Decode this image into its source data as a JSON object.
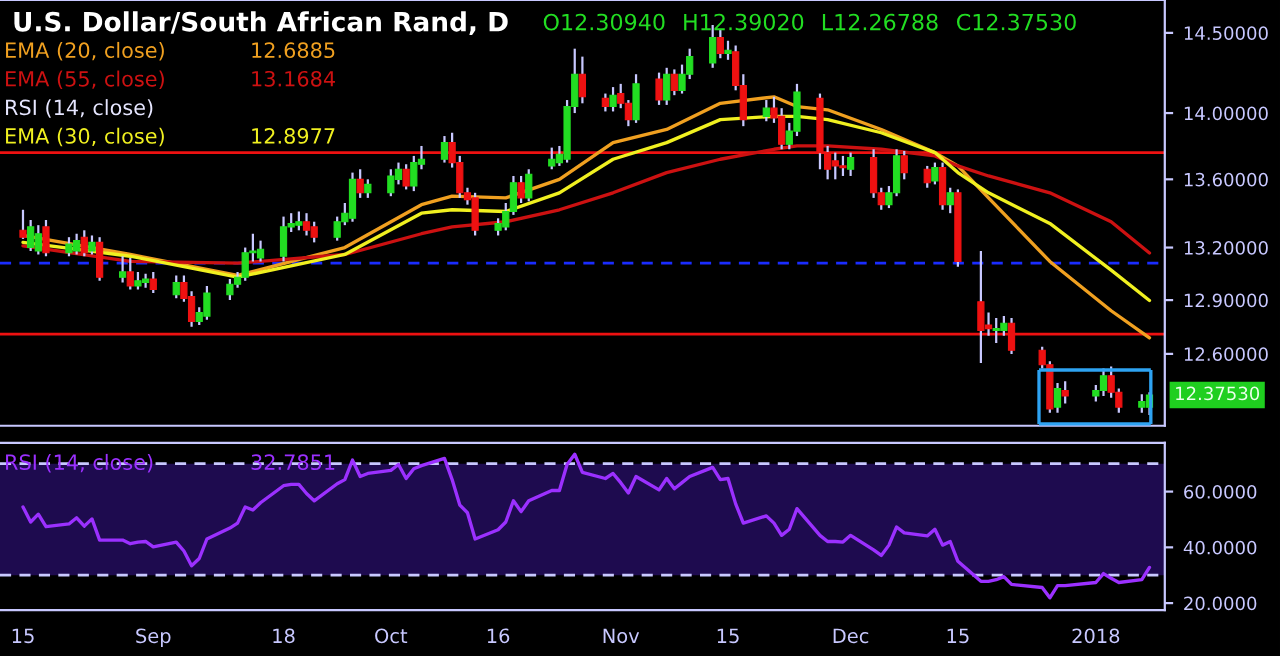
{
  "chart_data": [
    {
      "type": "candlestick",
      "title": "U.S. Dollar/South African Rand, D",
      "x": [
        "2017-08-15",
        "2017-08-16",
        "2017-08-17",
        "2017-08-18",
        "2017-08-21",
        "2017-08-22",
        "2017-08-23",
        "2017-08-24",
        "2017-08-25",
        "2017-08-28",
        "2017-08-29",
        "2017-08-30",
        "2017-08-31",
        "2017-09-01",
        "2017-09-04",
        "2017-09-05",
        "2017-09-06",
        "2017-09-07",
        "2017-09-08",
        "2017-09-11",
        "2017-09-12",
        "2017-09-13",
        "2017-09-14",
        "2017-09-15",
        "2017-09-18",
        "2017-09-19",
        "2017-09-20",
        "2017-09-21",
        "2017-09-22",
        "2017-09-25",
        "2017-09-26",
        "2017-09-27",
        "2017-09-28",
        "2017-09-29",
        "2017-10-02",
        "2017-10-03",
        "2017-10-04",
        "2017-10-05",
        "2017-10-06",
        "2017-10-09",
        "2017-10-10",
        "2017-10-11",
        "2017-10-12",
        "2017-10-13",
        "2017-10-16",
        "2017-10-17",
        "2017-10-18",
        "2017-10-19",
        "2017-10-20",
        "2017-10-23",
        "2017-10-24",
        "2017-10-25",
        "2017-10-26",
        "2017-10-27",
        "2017-10-30",
        "2017-10-31",
        "2017-11-01",
        "2017-11-02",
        "2017-11-03",
        "2017-11-06",
        "2017-11-07",
        "2017-11-08",
        "2017-11-09",
        "2017-11-10",
        "2017-11-13",
        "2017-11-14",
        "2017-11-15",
        "2017-11-16",
        "2017-11-17",
        "2017-11-20",
        "2017-11-21",
        "2017-11-22",
        "2017-11-23",
        "2017-11-24",
        "2017-11-27",
        "2017-11-28",
        "2017-11-29",
        "2017-11-30",
        "2017-12-01",
        "2017-12-04",
        "2017-12-05",
        "2017-12-06",
        "2017-12-07",
        "2017-12-08",
        "2017-12-11",
        "2017-12-12",
        "2017-12-13",
        "2017-12-14",
        "2017-12-15",
        "2017-12-18",
        "2017-12-19",
        "2017-12-20",
        "2017-12-21",
        "2017-12-22",
        "2017-12-26",
        "2017-12-27",
        "2017-12-28",
        "2017-12-29",
        "2018-01-02",
        "2018-01-03",
        "2018-01-04",
        "2018-01-05",
        "2018-01-08",
        "2018-01-09"
      ],
      "ohlc": [
        [
          13.3,
          13.42,
          13.25,
          13.26
        ],
        [
          13.2,
          13.36,
          13.18,
          13.32
        ],
        [
          13.18,
          13.33,
          13.16,
          13.28
        ],
        [
          13.32,
          13.36,
          13.15,
          13.17
        ],
        [
          13.17,
          13.26,
          13.15,
          13.22
        ],
        [
          13.18,
          13.28,
          13.16,
          13.24
        ],
        [
          13.26,
          13.3,
          13.15,
          13.17
        ],
        [
          13.18,
          13.27,
          13.16,
          13.23
        ],
        [
          13.23,
          13.26,
          13.01,
          13.03
        ],
        [
          13.03,
          13.15,
          13.0,
          13.06
        ],
        [
          13.06,
          13.14,
          12.96,
          12.98
        ],
        [
          12.98,
          13.06,
          12.96,
          13.01
        ],
        [
          13.0,
          13.05,
          12.97,
          13.02
        ],
        [
          13.02,
          13.06,
          12.94,
          12.96
        ],
        [
          12.93,
          13.04,
          12.91,
          13.0
        ],
        [
          13.0,
          13.04,
          12.89,
          12.91
        ],
        [
          12.92,
          12.95,
          12.75,
          12.78
        ],
        [
          12.78,
          12.86,
          12.76,
          12.83
        ],
        [
          12.81,
          12.98,
          12.79,
          12.94
        ],
        [
          12.93,
          13.02,
          12.9,
          12.99
        ],
        [
          12.99,
          13.06,
          12.97,
          13.03
        ],
        [
          13.03,
          13.2,
          13.01,
          13.17
        ],
        [
          13.17,
          13.28,
          13.12,
          13.18
        ],
        [
          13.14,
          13.24,
          13.12,
          13.19
        ],
        [
          13.15,
          13.38,
          13.12,
          13.32
        ],
        [
          13.32,
          13.4,
          13.29,
          13.34
        ],
        [
          13.33,
          13.41,
          13.3,
          13.35
        ],
        [
          13.35,
          13.4,
          13.27,
          13.3
        ],
        [
          13.32,
          13.35,
          13.23,
          13.26
        ],
        [
          13.26,
          13.38,
          13.24,
          13.35
        ],
        [
          13.35,
          13.46,
          13.33,
          13.4
        ],
        [
          13.37,
          13.64,
          13.35,
          13.6
        ],
        [
          13.6,
          13.66,
          13.49,
          13.52
        ],
        [
          13.52,
          13.6,
          13.49,
          13.57
        ],
        [
          13.52,
          13.66,
          13.5,
          13.62
        ],
        [
          13.6,
          13.7,
          13.57,
          13.66
        ],
        [
          13.66,
          13.69,
          13.54,
          13.56
        ],
        [
          13.56,
          13.74,
          13.53,
          13.7
        ],
        [
          13.69,
          13.8,
          13.66,
          13.72
        ],
        [
          13.72,
          13.86,
          13.7,
          13.82
        ],
        [
          13.82,
          13.88,
          13.67,
          13.7
        ],
        [
          13.7,
          13.74,
          13.49,
          13.52
        ],
        [
          13.52,
          13.55,
          13.45,
          13.48
        ],
        [
          13.49,
          13.52,
          13.27,
          13.3
        ],
        [
          13.3,
          13.37,
          13.27,
          13.34
        ],
        [
          13.32,
          13.46,
          13.3,
          13.41
        ],
        [
          13.41,
          13.62,
          13.39,
          13.58
        ],
        [
          13.58,
          13.62,
          13.46,
          13.49
        ],
        [
          13.49,
          13.66,
          13.47,
          13.63
        ],
        [
          13.68,
          13.79,
          13.66,
          13.72
        ],
        [
          13.7,
          13.8,
          13.68,
          13.75
        ],
        [
          13.72,
          14.08,
          13.7,
          14.04
        ],
        [
          14.04,
          14.4,
          14.0,
          14.24
        ],
        [
          14.24,
          14.35,
          14.06,
          14.1
        ],
        [
          14.09,
          14.12,
          14.01,
          14.04
        ],
        [
          14.04,
          14.16,
          14.01,
          14.11
        ],
        [
          14.12,
          14.18,
          14.03,
          14.06
        ],
        [
          14.06,
          14.08,
          13.92,
          13.96
        ],
        [
          13.96,
          14.24,
          13.94,
          14.18
        ],
        [
          14.21,
          14.25,
          14.05,
          14.08
        ],
        [
          14.08,
          14.28,
          14.05,
          14.24
        ],
        [
          14.24,
          14.27,
          14.11,
          14.14
        ],
        [
          14.14,
          14.3,
          14.12,
          14.24
        ],
        [
          14.24,
          14.4,
          14.21,
          14.35
        ],
        [
          14.31,
          14.55,
          14.28,
          14.47
        ],
        [
          14.47,
          14.52,
          14.34,
          14.37
        ],
        [
          14.37,
          14.45,
          14.33,
          14.39
        ],
        [
          14.38,
          14.42,
          14.14,
          14.17
        ],
        [
          14.17,
          14.24,
          13.92,
          13.96
        ],
        [
          13.98,
          14.08,
          13.95,
          14.03
        ],
        [
          14.03,
          14.1,
          13.94,
          13.97
        ],
        [
          13.98,
          14.03,
          13.78,
          13.81
        ],
        [
          13.81,
          13.94,
          13.78,
          13.89
        ],
        [
          13.89,
          14.18,
          13.86,
          14.13
        ],
        [
          14.09,
          14.12,
          13.66,
          13.76
        ],
        [
          13.76,
          13.8,
          13.6,
          13.66
        ],
        [
          13.71,
          13.76,
          13.6,
          13.68
        ],
        [
          13.68,
          13.74,
          13.62,
          13.67
        ],
        [
          13.66,
          13.76,
          13.62,
          13.73
        ],
        [
          13.73,
          13.78,
          13.49,
          13.52
        ],
        [
          13.52,
          13.55,
          13.42,
          13.45
        ],
        [
          13.45,
          13.56,
          13.43,
          13.52
        ],
        [
          13.52,
          13.78,
          13.5,
          13.74
        ],
        [
          13.74,
          13.77,
          13.6,
          13.64
        ],
        [
          13.66,
          13.68,
          13.55,
          13.58
        ],
        [
          13.59,
          13.7,
          13.57,
          13.67
        ],
        [
          13.67,
          13.7,
          13.42,
          13.45
        ],
        [
          13.45,
          13.55,
          13.4,
          13.52
        ],
        [
          13.52,
          13.54,
          13.09,
          13.12
        ],
        [
          12.89,
          13.18,
          12.55,
          12.73
        ],
        [
          12.76,
          12.83,
          12.7,
          12.74
        ],
        [
          12.73,
          12.8,
          12.66,
          12.74
        ],
        [
          12.73,
          12.81,
          12.7,
          12.77
        ],
        [
          12.77,
          12.8,
          12.6,
          12.62
        ],
        [
          12.62,
          12.64,
          12.52,
          12.54
        ],
        [
          12.54,
          12.56,
          12.28,
          12.3
        ],
        [
          12.31,
          12.44,
          12.28,
          12.41
        ],
        [
          12.4,
          12.45,
          12.33,
          12.37
        ],
        [
          12.37,
          12.43,
          12.34,
          12.4
        ],
        [
          12.4,
          12.52,
          12.37,
          12.48
        ],
        [
          12.48,
          12.53,
          12.36,
          12.39
        ],
        [
          12.39,
          12.41,
          12.28,
          12.31
        ],
        [
          12.31,
          12.38,
          12.28,
          12.34
        ],
        [
          12.3094,
          12.3902,
          12.26788,
          12.3753
        ]
      ],
      "series": [
        {
          "name": "EMA (20, close)",
          "type": "line",
          "color": "#f0a020",
          "x": [
            "2017-08-15",
            "2017-08-29",
            "2017-09-12",
            "2017-09-26",
            "2017-10-06",
            "2017-10-10",
            "2017-10-17",
            "2017-10-24",
            "2017-10-31",
            "2017-11-07",
            "2017-11-14",
            "2017-11-21",
            "2017-11-24",
            "2017-11-28",
            "2017-12-05",
            "2017-12-12",
            "2017-12-15",
            "2017-12-19",
            "2017-12-27",
            "2018-01-04",
            "2018-01-09"
          ],
          "values": [
            13.27,
            13.16,
            13.04,
            13.2,
            13.45,
            13.5,
            13.49,
            13.6,
            13.82,
            13.9,
            14.06,
            14.1,
            14.04,
            14.02,
            13.9,
            13.76,
            13.68,
            13.49,
            13.12,
            12.84,
            12.6885
          ]
        },
        {
          "name": "EMA (55, close)",
          "type": "line",
          "color": "#cc1111",
          "x": [
            "2017-08-15",
            "2017-08-29",
            "2017-09-12",
            "2017-09-26",
            "2017-10-06",
            "2017-10-10",
            "2017-10-17",
            "2017-10-24",
            "2017-10-31",
            "2017-11-07",
            "2017-11-14",
            "2017-11-21",
            "2017-11-24",
            "2017-11-28",
            "2017-12-05",
            "2017-12-12",
            "2017-12-15",
            "2017-12-19",
            "2017-12-27",
            "2018-01-04",
            "2018-01-09"
          ],
          "values": [
            13.21,
            13.12,
            13.11,
            13.16,
            13.28,
            13.32,
            13.35,
            13.42,
            13.52,
            13.64,
            13.72,
            13.78,
            13.8,
            13.8,
            13.78,
            13.74,
            13.68,
            13.62,
            13.52,
            13.35,
            13.1684
          ]
        },
        {
          "name": "EMA (30, close)",
          "type": "line",
          "color": "#f0f020",
          "x": [
            "2017-08-15",
            "2017-08-29",
            "2017-09-12",
            "2017-09-26",
            "2017-10-06",
            "2017-10-10",
            "2017-10-17",
            "2017-10-24",
            "2017-10-31",
            "2017-11-07",
            "2017-11-14",
            "2017-11-21",
            "2017-11-24",
            "2017-11-28",
            "2017-12-05",
            "2017-12-12",
            "2017-12-15",
            "2017-12-19",
            "2017-12-27",
            "2018-01-04",
            "2018-01-09"
          ],
          "values": [
            13.23,
            13.15,
            13.03,
            13.16,
            13.4,
            13.42,
            13.41,
            13.52,
            13.72,
            13.82,
            13.96,
            13.98,
            13.98,
            13.96,
            13.88,
            13.76,
            13.64,
            13.52,
            13.34,
            13.07,
            12.8977
          ]
        }
      ],
      "annotations": [
        "RSI (14, close)",
        "O12.30940",
        "H12.39020",
        "L12.26788",
        "C12.37530",
        "12.6885",
        "13.1684",
        "12.8977",
        "12.37530"
      ],
      "ref_lines": [
        {
          "axis": "y",
          "value": 13.76,
          "color": "#ee1111",
          "line_style": "solid"
        },
        {
          "axis": "y",
          "value": 12.71,
          "color": "#ee1111",
          "line_style": "solid"
        },
        {
          "axis": "y",
          "value": 13.11,
          "color": "#1a2cff",
          "line_style": "dashed"
        }
      ],
      "xlim": [
        "2017-08-12",
        "2018-01-11"
      ],
      "ylim": [
        12.21,
        14.71
      ],
      "log": true,
      "yticks": [
        {
          "value": 12.6,
          "label": "12.60000"
        },
        {
          "value": 12.9,
          "label": "12.90000"
        },
        {
          "value": 13.2,
          "label": "13.20000"
        },
        {
          "value": 13.6,
          "label": "13.60000"
        },
        {
          "value": 14.0,
          "label": "14.00000"
        },
        {
          "value": 14.5,
          "label": "14.50000"
        }
      ],
      "tick_labels": "y",
      "legend": "top left"
    },
    {
      "type": "line",
      "x": [
        "2017-08-15",
        "2017-08-16",
        "2017-08-17",
        "2017-08-18",
        "2017-08-21",
        "2017-08-22",
        "2017-08-23",
        "2017-08-24",
        "2017-08-25",
        "2017-08-28",
        "2017-08-29",
        "2017-08-30",
        "2017-08-31",
        "2017-09-01",
        "2017-09-04",
        "2017-09-05",
        "2017-09-06",
        "2017-09-07",
        "2017-09-08",
        "2017-09-11",
        "2017-09-12",
        "2017-09-13",
        "2017-09-14",
        "2017-09-15",
        "2017-09-18",
        "2017-09-19",
        "2017-09-20",
        "2017-09-21",
        "2017-09-22",
        "2017-09-25",
        "2017-09-26",
        "2017-09-27",
        "2017-09-28",
        "2017-09-29",
        "2017-10-02",
        "2017-10-03",
        "2017-10-04",
        "2017-10-05",
        "2017-10-06",
        "2017-10-09",
        "2017-10-10",
        "2017-10-11",
        "2017-10-12",
        "2017-10-13",
        "2017-10-16",
        "2017-10-17",
        "2017-10-18",
        "2017-10-19",
        "2017-10-20",
        "2017-10-23",
        "2017-10-24",
        "2017-10-25",
        "2017-10-26",
        "2017-10-27",
        "2017-10-30",
        "2017-10-31",
        "2017-11-01",
        "2017-11-02",
        "2017-11-03",
        "2017-11-06",
        "2017-11-07",
        "2017-11-08",
        "2017-11-09",
        "2017-11-10",
        "2017-11-13",
        "2017-11-14",
        "2017-11-15",
        "2017-11-16",
        "2017-11-17",
        "2017-11-20",
        "2017-11-21",
        "2017-11-22",
        "2017-11-23",
        "2017-11-24",
        "2017-11-27",
        "2017-11-28",
        "2017-11-29",
        "2017-11-30",
        "2017-12-01",
        "2017-12-04",
        "2017-12-05",
        "2017-12-06",
        "2017-12-07",
        "2017-12-08",
        "2017-12-11",
        "2017-12-12",
        "2017-12-13",
        "2017-12-14",
        "2017-12-15",
        "2017-12-18",
        "2017-12-19",
        "2017-12-20",
        "2017-12-21",
        "2017-12-22",
        "2017-12-26",
        "2017-12-27",
        "2017-12-28",
        "2017-12-29",
        "2018-01-02",
        "2018-01-03",
        "2018-01-04",
        "2018-01-05",
        "2018-01-08",
        "2018-01-09"
      ],
      "series": [
        {
          "name": "RSI (14, close)",
          "color": "#9b30ff",
          "values": [
            54.5,
            49.1,
            51.9,
            47.4,
            48.4,
            50.6,
            47.6,
            50.2,
            42.6,
            42.6,
            41.3,
            41.9,
            42.1,
            40.2,
            41.9,
            38.7,
            33.4,
            36.0,
            43.0,
            46.9,
            48.7,
            54.5,
            53.4,
            56.0,
            62.1,
            62.6,
            62.6,
            59.3,
            56.7,
            62.8,
            64.3,
            71.3,
            65.4,
            66.5,
            67.6,
            69.7,
            64.7,
            68.2,
            69.3,
            71.9,
            64.3,
            55.2,
            52.4,
            43.0,
            46.3,
            49.1,
            56.7,
            52.8,
            56.7,
            60.4,
            60.4,
            69.7,
            73.4,
            66.9,
            64.7,
            66.5,
            63.2,
            59.5,
            65.4,
            60.6,
            64.7,
            61.0,
            63.2,
            65.4,
            68.7,
            64.3,
            64.7,
            55.6,
            48.7,
            51.3,
            48.7,
            44.3,
            46.5,
            53.9,
            44.3,
            42.1,
            42.1,
            41.9,
            44.3,
            39.1,
            37.1,
            40.8,
            47.3,
            45.2,
            44.1,
            46.5,
            40.8,
            42.1,
            35.0,
            27.8,
            27.8,
            28.4,
            29.5,
            26.7,
            25.6,
            21.9,
            26.3,
            26.3,
            27.4,
            30.6,
            28.9,
            27.4,
            28.4,
            32.8
          ]
        }
      ],
      "annotations": [
        "32.7851"
      ],
      "bands": [
        {
          "axis": "y",
          "from": 30,
          "to": 70,
          "color": "#1e0b4f"
        }
      ],
      "ref_lines": [
        {
          "axis": "y",
          "value": 70,
          "color": "#c8c8ff",
          "line_style": "dashed"
        },
        {
          "axis": "y",
          "value": 30,
          "color": "#c8c8ff",
          "line_style": "dashed"
        }
      ],
      "xlim": [
        "2017-08-12",
        "2018-01-11"
      ],
      "ylim": [
        17.5,
        77.5
      ],
      "yticks": [
        {
          "value": 20,
          "label": "20.0000"
        },
        {
          "value": 40,
          "label": "40.0000"
        },
        {
          "value": 60,
          "label": "60.0000"
        }
      ],
      "xticks": [
        {
          "value": "2017-08-15",
          "label": "15"
        },
        {
          "value": "2017-09-01",
          "label": "Sep"
        },
        {
          "value": "2017-09-18",
          "label": "18"
        },
        {
          "value": "2017-10-02",
          "label": "Oct"
        },
        {
          "value": "2017-10-16",
          "label": "16"
        },
        {
          "value": "2017-11-01",
          "label": "Nov"
        },
        {
          "value": "2017-11-15",
          "label": "15"
        },
        {
          "value": "2017-12-01",
          "label": "Dec"
        },
        {
          "value": "2017-12-15",
          "label": "15"
        },
        {
          "value": "2018-01-02",
          "label": "2018"
        }
      ],
      "legend": "top left"
    }
  ]
}
